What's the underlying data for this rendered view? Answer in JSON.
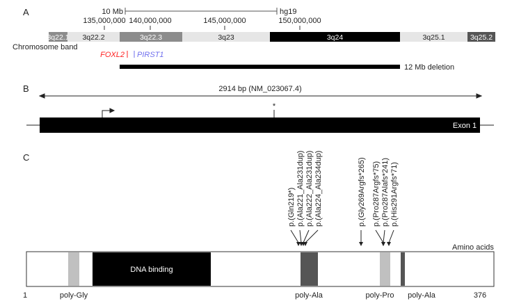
{
  "panel_a": {
    "label": "A",
    "scale_bar": "10 Mb",
    "assembly": "hg19",
    "coordinates": [
      "135,000,000",
      "140,000,000",
      "145,000,000",
      "150,000,000"
    ],
    "bands": [
      {
        "name": "3q22.1",
        "color": "#8c8c8c"
      },
      {
        "name": "3q22.2",
        "color": "#e6e6e6"
      },
      {
        "name": "3q22.3",
        "color": "#8c8c8c"
      },
      {
        "name": "3q23",
        "color": "#e6e6e6"
      },
      {
        "name": "3q24",
        "color": "#000000"
      },
      {
        "name": "3q25.1",
        "color": "#e6e6e6"
      },
      {
        "name": "3q25.2",
        "color": "#555555"
      }
    ],
    "band_track_label": "Chromosome band",
    "genes": [
      {
        "name": "FOXL2",
        "color": "#ff2020"
      },
      {
        "name": "PIRST1",
        "color": "#7070ee"
      }
    ],
    "deletion_label": "12 Mb deletion"
  },
  "panel_b": {
    "label": "B",
    "length_label": "2914 bp (NM_023067.4)",
    "marker": "*",
    "exon_label": "Exon 1"
  },
  "panel_c": {
    "label": "C",
    "variants": [
      "p.(Gln219*)",
      "p.(Ala221_Ala231dup)",
      "p.(Ala222_Ala231dup)",
      "p.(Ala224_Ala234dup)",
      "p.(Gly269Argfs*265)",
      "p.(Pro287Argfs*75)",
      "p.(Pro287Alafs*241)",
      "p.(His291Argfs*71)"
    ],
    "axis_label": "Amino acids",
    "domain_label": "DNA binding",
    "start": "1",
    "end": "376",
    "regions": [
      "poly-Gly",
      "poly-Ala",
      "poly-Pro",
      "poly-Ala"
    ]
  }
}
